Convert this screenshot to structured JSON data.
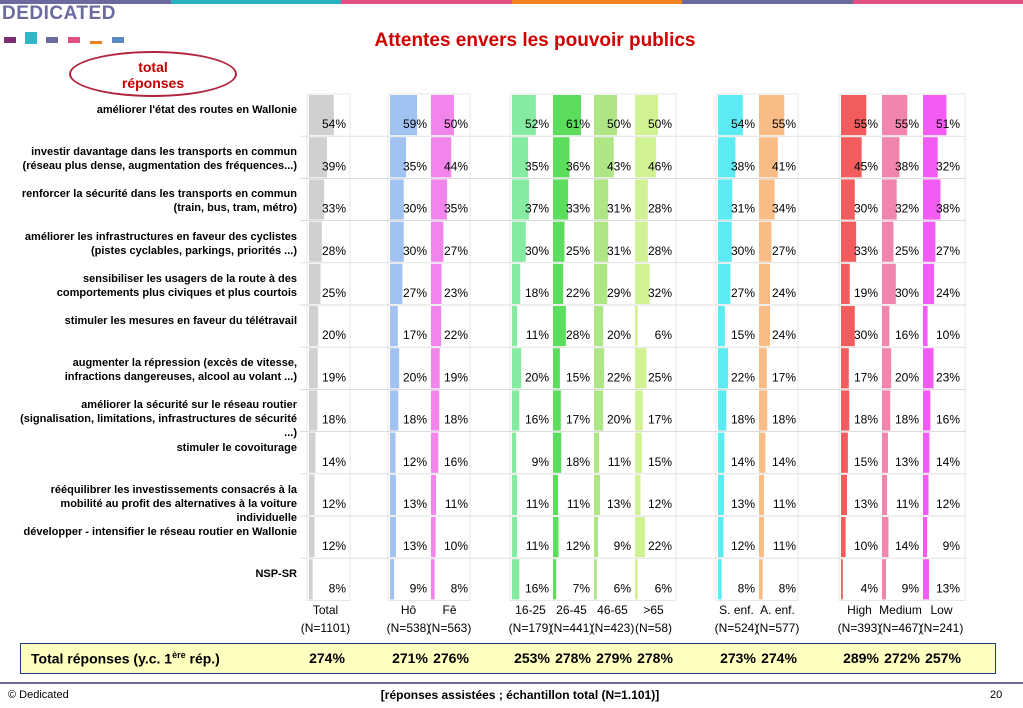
{
  "header": {
    "logo": "DEDICATED",
    "title": "Attentes envers les pouvoir publics",
    "oval_line1": "total",
    "oval_line2": "réponses"
  },
  "colors": {
    "total": "#c8c8c8",
    "gender": [
      "#8fb8f0",
      "#f070e8"
    ],
    "age": [
      "#70e890",
      "#40d840",
      "#a0e070",
      "#c8f080"
    ],
    "kids": [
      "#40e8f0",
      "#f8b070"
    ],
    "income": [
      "#f04040",
      "#f070a0",
      "#f040f0"
    ]
  },
  "chart_data": {
    "type": "table",
    "title": "Attentes envers les pouvoir publics",
    "categories": [
      "améliorer l'état des routes en Wallonie",
      "investir davantage dans les transports en commun (réseau plus dense, augmentation des fréquences...)",
      "renforcer la sécurité dans les transports en commun (train, bus, tram, métro)",
      "améliorer les infrastructures en faveur des cyclistes (pistes cyclables, parkings, priorités ...)",
      "sensibiliser les usagers de la route à des comportements plus civiques et plus courtois",
      "stimuler les mesures en faveur du télétravail",
      "augmenter la répression (excès de vitesse, infractions dangereuses, alcool au volant ...)",
      "améliorer la sécurité sur le réseau routier (signalisation, limitations, infrastructures de sécurité ...)",
      "stimuler le covoiturage",
      "rééquilibrer les investissements consacrés à la mobilité au profit des alternatives à la voiture individuelle",
      "développer - intensifier le réseau routier en Wallonie",
      "NSP-SR"
    ],
    "series": [
      {
        "name": "Total",
        "n": "(N=1101)",
        "values": [
          54,
          39,
          33,
          28,
          25,
          20,
          19,
          18,
          14,
          12,
          12,
          8
        ]
      },
      {
        "name": "Hô",
        "n": "(N=538)",
        "values": [
          59,
          35,
          30,
          30,
          27,
          17,
          20,
          18,
          12,
          13,
          13,
          9
        ]
      },
      {
        "name": "Fê",
        "n": "(N=563)",
        "values": [
          50,
          44,
          35,
          27,
          23,
          22,
          19,
          18,
          16,
          11,
          10,
          8
        ]
      },
      {
        "name": "16-25",
        "n": "(N=179)",
        "values": [
          52,
          35,
          37,
          30,
          18,
          11,
          20,
          16,
          9,
          11,
          11,
          16
        ]
      },
      {
        "name": "26-45",
        "n": "(N=441)",
        "values": [
          61,
          36,
          33,
          25,
          22,
          28,
          15,
          17,
          18,
          11,
          12,
          7
        ]
      },
      {
        "name": "46-65",
        "n": "(N=423)",
        "values": [
          50,
          43,
          31,
          31,
          29,
          20,
          22,
          20,
          11,
          13,
          9,
          6
        ]
      },
      {
        "name": ">65",
        "n": "(N=58)",
        "values": [
          50,
          46,
          28,
          28,
          32,
          6,
          25,
          17,
          15,
          12,
          22,
          6
        ]
      },
      {
        "name": "S. enf.",
        "n": "(N=524)",
        "values": [
          54,
          38,
          31,
          30,
          27,
          15,
          22,
          18,
          14,
          13,
          12,
          8
        ]
      },
      {
        "name": "A. enf.",
        "n": "(N=577)",
        "values": [
          55,
          41,
          34,
          27,
          24,
          24,
          17,
          18,
          14,
          11,
          11,
          8
        ]
      },
      {
        "name": "High",
        "n": "(N=393)",
        "values": [
          55,
          45,
          30,
          33,
          19,
          30,
          17,
          18,
          15,
          13,
          10,
          4
        ]
      },
      {
        "name": "Medium",
        "n": "(N=467)",
        "values": [
          55,
          38,
          32,
          25,
          30,
          16,
          20,
          18,
          13,
          11,
          14,
          9
        ]
      },
      {
        "name": "Low",
        "n": "(N=241)",
        "values": [
          51,
          32,
          38,
          27,
          24,
          10,
          23,
          16,
          14,
          12,
          9,
          13
        ]
      }
    ],
    "total_label": "Total réponses (y.c. 1",
    "total_label_sup": "ère",
    "total_label_end": " rép.)",
    "totals": [
      "274%",
      "271%",
      "276%",
      "253%",
      "278%",
      "279%",
      "278%",
      "273%",
      "274%",
      "289%",
      "272%",
      "257%"
    ]
  },
  "footer": {
    "copyright": "© Dedicated",
    "note": "[réponses assistées ; échantillon total (N=1.101)]",
    "page": "20"
  }
}
